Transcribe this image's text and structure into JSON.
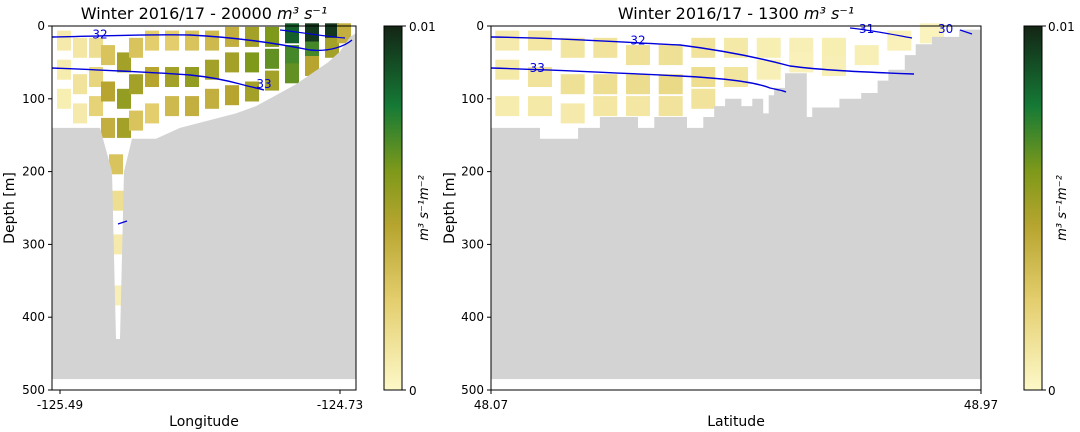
{
  "chart_data": [
    {
      "type": "heatmap",
      "title": "Winter 2016/17 - 20000",
      "title_unit": "m³ s⁻¹",
      "xlabel": "Longitude",
      "ylabel": "Depth [m]",
      "xticks": [
        "-125.49",
        "-124.73"
      ],
      "xlim": [
        -125.49,
        -124.73
      ],
      "ylim": [
        500,
        0
      ],
      "yticks": [
        0,
        100,
        200,
        300,
        400,
        500
      ],
      "colorbar": {
        "label": "m³ s⁻¹m⁻²",
        "ticks": [
          "0",
          "0.01"
        ],
        "range": [
          0,
          0.01
        ]
      },
      "contour_labels": [
        {
          "value": "32",
          "x": -125.37,
          "depth": 12
        },
        {
          "value": "33",
          "x": -124.96,
          "depth": 80
        }
      ],
      "bathymetry": [
        [
          -125.49,
          140
        ],
        [
          -125.4,
          140
        ],
        [
          -125.37,
          140
        ],
        [
          -125.36,
          160
        ],
        [
          -125.34,
          200
        ],
        [
          -125.33,
          430
        ],
        [
          -125.32,
          430
        ],
        [
          -125.31,
          200
        ],
        [
          -125.29,
          155
        ],
        [
          -125.23,
          155
        ],
        [
          -125.17,
          140
        ],
        [
          -125.1,
          130
        ],
        [
          -125.03,
          120
        ],
        [
          -124.98,
          110
        ],
        [
          -124.93,
          95
        ],
        [
          -124.88,
          80
        ],
        [
          -124.84,
          65
        ],
        [
          -124.8,
          50
        ],
        [
          -124.77,
          35
        ],
        [
          -124.745,
          15
        ],
        [
          -124.73,
          10
        ]
      ],
      "transport_cells": [
        {
          "x": -125.46,
          "depth": 20,
          "v": 0.0008
        },
        {
          "x": -125.46,
          "depth": 60,
          "v": 0.0007
        },
        {
          "x": -125.46,
          "depth": 100,
          "v": 0.0006
        },
        {
          "x": -125.42,
          "depth": 30,
          "v": 0.001
        },
        {
          "x": -125.42,
          "depth": 80,
          "v": 0.0012
        },
        {
          "x": -125.42,
          "depth": 120,
          "v": 0.0008
        },
        {
          "x": -125.38,
          "depth": 30,
          "v": 0.0015
        },
        {
          "x": -125.38,
          "depth": 70,
          "v": 0.002
        },
        {
          "x": -125.38,
          "depth": 110,
          "v": 0.0022
        },
        {
          "x": -125.35,
          "depth": 40,
          "v": 0.003
        },
        {
          "x": -125.35,
          "depth": 90,
          "v": 0.0045
        },
        {
          "x": -125.35,
          "depth": 140,
          "v": 0.004
        },
        {
          "x": -125.33,
          "depth": 190,
          "v": 0.003
        },
        {
          "x": -125.325,
          "depth": 240,
          "v": 0.0015
        },
        {
          "x": -125.325,
          "depth": 300,
          "v": 0.0008
        },
        {
          "x": -125.325,
          "depth": 370,
          "v": 0.0005
        },
        {
          "x": -125.31,
          "depth": 50,
          "v": 0.005
        },
        {
          "x": -125.31,
          "depth": 100,
          "v": 0.0055
        },
        {
          "x": -125.31,
          "depth": 140,
          "v": 0.005
        },
        {
          "x": -125.28,
          "depth": 30,
          "v": 0.003
        },
        {
          "x": -125.28,
          "depth": 80,
          "v": 0.005
        },
        {
          "x": -125.28,
          "depth": 130,
          "v": 0.003
        },
        {
          "x": -125.24,
          "depth": 20,
          "v": 0.0025
        },
        {
          "x": -125.24,
          "depth": 70,
          "v": 0.0045
        },
        {
          "x": -125.24,
          "depth": 120,
          "v": 0.0025
        },
        {
          "x": -125.19,
          "depth": 20,
          "v": 0.0025
        },
        {
          "x": -125.19,
          "depth": 70,
          "v": 0.005
        },
        {
          "x": -125.19,
          "depth": 110,
          "v": 0.0035
        },
        {
          "x": -125.14,
          "depth": 20,
          "v": 0.003
        },
        {
          "x": -125.14,
          "depth": 70,
          "v": 0.0055
        },
        {
          "x": -125.14,
          "depth": 110,
          "v": 0.004
        },
        {
          "x": -125.09,
          "depth": 20,
          "v": 0.0035
        },
        {
          "x": -125.09,
          "depth": 60,
          "v": 0.005
        },
        {
          "x": -125.09,
          "depth": 100,
          "v": 0.004
        },
        {
          "x": -125.04,
          "depth": 15,
          "v": 0.004
        },
        {
          "x": -125.04,
          "depth": 50,
          "v": 0.005
        },
        {
          "x": -125.04,
          "depth": 95,
          "v": 0.0045
        },
        {
          "x": -124.99,
          "depth": 15,
          "v": 0.005
        },
        {
          "x": -124.99,
          "depth": 50,
          "v": 0.006
        },
        {
          "x": -124.99,
          "depth": 90,
          "v": 0.005
        },
        {
          "x": -124.94,
          "depth": 15,
          "v": 0.006
        },
        {
          "x": -124.94,
          "depth": 45,
          "v": 0.0065
        },
        {
          "x": -124.94,
          "depth": 75,
          "v": 0.005
        },
        {
          "x": -124.89,
          "depth": 10,
          "v": 0.0085
        },
        {
          "x": -124.89,
          "depth": 40,
          "v": 0.007
        },
        {
          "x": -124.89,
          "depth": 65,
          "v": 0.0065
        },
        {
          "x": -124.84,
          "depth": 10,
          "v": 0.0095
        },
        {
          "x": -124.84,
          "depth": 35,
          "v": 0.007
        },
        {
          "x": -124.84,
          "depth": 55,
          "v": 0.0045
        },
        {
          "x": -124.79,
          "depth": 10,
          "v": 0.0095
        },
        {
          "x": -124.79,
          "depth": 30,
          "v": 0.005
        },
        {
          "x": -124.76,
          "depth": 10,
          "v": 0.004
        }
      ]
    },
    {
      "type": "heatmap",
      "title": "Winter 2016/17 - 1300",
      "title_unit": "m³ s⁻¹",
      "xlabel": "Latitude",
      "ylabel": "Depth [m]",
      "xticks": [
        "48.07",
        "48.97"
      ],
      "xlim": [
        48.07,
        48.97
      ],
      "ylim": [
        500,
        0
      ],
      "yticks": [
        0,
        100,
        200,
        300,
        400,
        500
      ],
      "colorbar": {
        "label": "m³ s⁻¹m⁻²",
        "ticks": [
          "0",
          "0.01"
        ],
        "range": [
          0,
          0.01
        ]
      },
      "contour_labels": [
        {
          "value": "32",
          "x": 48.34,
          "depth": 20
        },
        {
          "value": "33",
          "x": 48.155,
          "depth": 58
        },
        {
          "value": "31",
          "x": 48.76,
          "depth": 4
        },
        {
          "value": "30",
          "x": 48.905,
          "depth": 4
        }
      ],
      "bathymetry": [
        [
          48.07,
          140
        ],
        [
          48.16,
          140
        ],
        [
          48.16,
          155
        ],
        [
          48.23,
          155
        ],
        [
          48.23,
          140
        ],
        [
          48.27,
          140
        ],
        [
          48.27,
          125
        ],
        [
          48.34,
          125
        ],
        [
          48.34,
          140
        ],
        [
          48.37,
          140
        ],
        [
          48.37,
          125
        ],
        [
          48.43,
          125
        ],
        [
          48.43,
          140
        ],
        [
          48.46,
          140
        ],
        [
          48.46,
          125
        ],
        [
          48.48,
          125
        ],
        [
          48.48,
          110
        ],
        [
          48.5,
          110
        ],
        [
          48.5,
          100
        ],
        [
          48.53,
          100
        ],
        [
          48.53,
          110
        ],
        [
          48.55,
          110
        ],
        [
          48.55,
          100
        ],
        [
          48.57,
          100
        ],
        [
          48.57,
          120
        ],
        [
          48.58,
          120
        ],
        [
          48.58,
          95
        ],
        [
          48.59,
          95
        ],
        [
          48.59,
          85
        ],
        [
          48.61,
          85
        ],
        [
          48.61,
          65
        ],
        [
          48.65,
          65
        ],
        [
          48.65,
          125
        ],
        [
          48.66,
          125
        ],
        [
          48.66,
          112
        ],
        [
          48.71,
          112
        ],
        [
          48.71,
          100
        ],
        [
          48.75,
          100
        ],
        [
          48.75,
          92
        ],
        [
          48.78,
          92
        ],
        [
          48.78,
          75
        ],
        [
          48.8,
          75
        ],
        [
          48.8,
          60
        ],
        [
          48.83,
          60
        ],
        [
          48.83,
          40
        ],
        [
          48.85,
          40
        ],
        [
          48.85,
          25
        ],
        [
          48.88,
          25
        ],
        [
          48.88,
          15
        ],
        [
          48.93,
          15
        ],
        [
          48.93,
          5
        ],
        [
          48.97,
          5
        ]
      ],
      "transport_cells": [
        {
          "x": 48.1,
          "depth": 20,
          "v": 0.0008
        },
        {
          "x": 48.1,
          "depth": 60,
          "v": 0.0009
        },
        {
          "x": 48.1,
          "depth": 110,
          "v": 0.0007
        },
        {
          "x": 48.16,
          "depth": 20,
          "v": 0.001
        },
        {
          "x": 48.16,
          "depth": 70,
          "v": 0.0012
        },
        {
          "x": 48.16,
          "depth": 110,
          "v": 0.0009
        },
        {
          "x": 48.22,
          "depth": 30,
          "v": 0.0011
        },
        {
          "x": 48.22,
          "depth": 80,
          "v": 0.0014
        },
        {
          "x": 48.22,
          "depth": 120,
          "v": 0.0008
        },
        {
          "x": 48.28,
          "depth": 30,
          "v": 0.0012
        },
        {
          "x": 48.28,
          "depth": 80,
          "v": 0.0015
        },
        {
          "x": 48.28,
          "depth": 110,
          "v": 0.001
        },
        {
          "x": 48.34,
          "depth": 40,
          "v": 0.0013
        },
        {
          "x": 48.34,
          "depth": 80,
          "v": 0.0016
        },
        {
          "x": 48.34,
          "depth": 110,
          "v": 0.001
        },
        {
          "x": 48.4,
          "depth": 40,
          "v": 0.0014
        },
        {
          "x": 48.4,
          "depth": 80,
          "v": 0.0018
        },
        {
          "x": 48.4,
          "depth": 110,
          "v": 0.0012
        },
        {
          "x": 48.46,
          "depth": 30,
          "v": 0.0012
        },
        {
          "x": 48.46,
          "depth": 70,
          "v": 0.0015
        },
        {
          "x": 48.46,
          "depth": 100,
          "v": 0.0012
        },
        {
          "x": 48.52,
          "depth": 30,
          "v": 0.0009
        },
        {
          "x": 48.52,
          "depth": 70,
          "v": 0.0011
        },
        {
          "x": 48.58,
          "depth": 30,
          "v": 0.0006
        },
        {
          "x": 48.58,
          "depth": 60,
          "v": 0.0005
        },
        {
          "x": 48.64,
          "depth": 30,
          "v": 0.0005
        },
        {
          "x": 48.64,
          "depth": 50,
          "v": 0.0004
        },
        {
          "x": 48.7,
          "depth": 30,
          "v": 0.0006
        },
        {
          "x": 48.7,
          "depth": 55,
          "v": 0.0005
        },
        {
          "x": 48.76,
          "depth": 40,
          "v": 0.0005
        },
        {
          "x": 48.82,
          "depth": 20,
          "v": 0.0004
        },
        {
          "x": 48.88,
          "depth": 10,
          "v": 0.0003
        }
      ]
    }
  ]
}
